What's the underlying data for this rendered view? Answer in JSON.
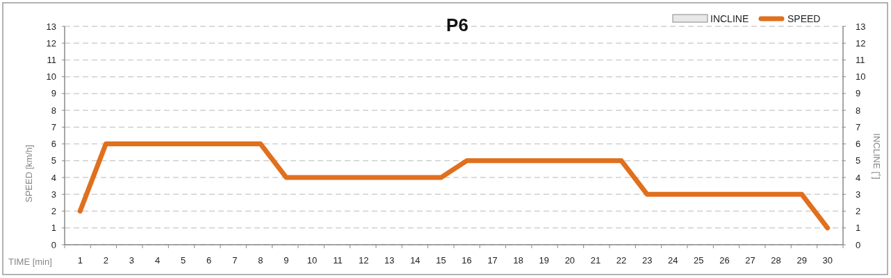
{
  "chart_data": {
    "type": "line",
    "title": "P6",
    "xlabel": "TIME [min]",
    "ylabel": "SPEED [km/h]",
    "y2label": "INCLINE [˚]",
    "categories": [
      "1",
      "2",
      "3",
      "4",
      "5",
      "6",
      "7",
      "8",
      "9",
      "10",
      "11",
      "12",
      "13",
      "14",
      "15",
      "16",
      "17",
      "18",
      "19",
      "20",
      "21",
      "22",
      "23",
      "24",
      "25",
      "26",
      "27",
      "28",
      "29",
      "30"
    ],
    "series": [
      {
        "name": "INCLINE",
        "type": "bar",
        "color": "#e8e8e8",
        "values": [
          null,
          null,
          null,
          null,
          null,
          null,
          null,
          null,
          null,
          null,
          null,
          null,
          null,
          null,
          null,
          null,
          null,
          null,
          null,
          null,
          null,
          null,
          null,
          null,
          null,
          null,
          null,
          null,
          null,
          null
        ]
      },
      {
        "name": "SPEED",
        "color": "#e0701e",
        "values": [
          2,
          6,
          6,
          6,
          6,
          6,
          6,
          6,
          4,
          4,
          4,
          4,
          4,
          4,
          4,
          5,
          5,
          5,
          5,
          5,
          5,
          5,
          3,
          3,
          3,
          3,
          3,
          3,
          3,
          1
        ]
      }
    ],
    "ylim": [
      0,
      13
    ],
    "yticks": [
      0,
      1,
      2,
      3,
      4,
      5,
      6,
      7,
      8,
      9,
      10,
      11,
      12,
      13
    ],
    "y2lim": [
      0,
      13
    ],
    "y2ticks": [
      0,
      1,
      2,
      3,
      4,
      5,
      6,
      7,
      8,
      9,
      10,
      11,
      12,
      13
    ],
    "grid": "y",
    "legend": "top right"
  }
}
